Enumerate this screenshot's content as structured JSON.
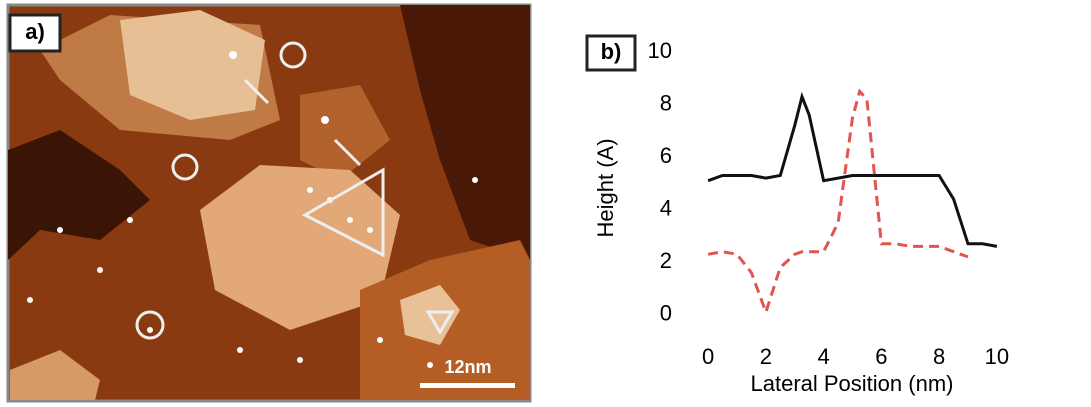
{
  "panel_a": {
    "label": "a)",
    "scale_bar": "12nm"
  },
  "chart_data": {
    "type": "line",
    "label": "b)",
    "x_label": "Lateral Position (nm)",
    "y_label": "Height (A)",
    "x": [
      0,
      0.5,
      1,
      1.5,
      2,
      2.5,
      3,
      3.25,
      3.5,
      4,
      4.5,
      5,
      5.25,
      5.5,
      6,
      6.5,
      7,
      7.5,
      8,
      8.5,
      9,
      9.5,
      10
    ],
    "series": [
      {
        "color": "#111111",
        "dash": false,
        "values": [
          5.1,
          5.3,
          5.3,
          5.3,
          5.2,
          5.3,
          7.2,
          8.3,
          7.6,
          5.1,
          5.2,
          5.3,
          5.3,
          5.3,
          5.3,
          5.3,
          5.3,
          5.3,
          5.3,
          4.4,
          2.7,
          2.7,
          2.6
        ]
      },
      {
        "color": "#e0554f",
        "dash": true,
        "values": [
          2.3,
          2.4,
          2.3,
          1.6,
          0.1,
          1.8,
          2.3,
          2.4,
          2.4,
          2.4,
          3.5,
          7.5,
          8.5,
          8.2,
          2.7,
          2.7,
          2.6,
          2.6,
          2.6,
          2.4,
          2.2,
          null,
          null
        ]
      }
    ],
    "xlim": [
      -0.8,
      10.8
    ],
    "ylim": [
      -1,
      10
    ],
    "xticks": [
      0,
      2,
      4,
      6,
      8,
      10
    ],
    "yticks": [
      0,
      2,
      4,
      6,
      8,
      10
    ]
  }
}
